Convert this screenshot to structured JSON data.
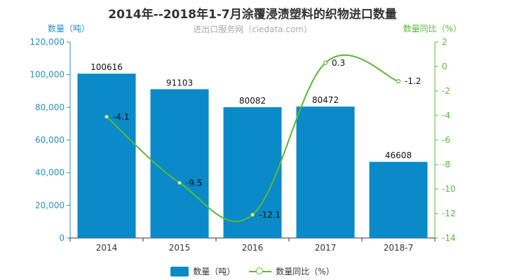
{
  "title": "2014年--2018年1-7月涂覆浸渍塑料的织物进口数量",
  "subtitle": "进出口服务网（ciedata.com）",
  "colors": {
    "bar": "#0a8ac8",
    "line": "#5cb83a",
    "left_axis": "#2a8fc0",
    "right_axis": "#5cb83a"
  },
  "chart_data": {
    "type": "bar",
    "categories": [
      "2014",
      "2015",
      "2016",
      "2017",
      "2018-7"
    ],
    "y_left": {
      "label": "数量（吨）",
      "ylim": [
        0,
        120000
      ],
      "ticks": [
        "0",
        "20,000",
        "40,000",
        "60,000",
        "80,000",
        "100,000",
        "120,000"
      ],
      "tick_values": [
        0,
        20000,
        40000,
        60000,
        80000,
        100000,
        120000
      ]
    },
    "y_right": {
      "label": "数量同比（%）",
      "ylim": [
        -14,
        2
      ],
      "ticks": [
        "-14",
        "-12",
        "-10",
        "-8",
        "-6",
        "-4",
        "-2",
        "0",
        "2"
      ],
      "tick_values": [
        -14,
        -12,
        -10,
        -8,
        -6,
        -4,
        -2,
        0,
        2
      ]
    },
    "series": [
      {
        "name": "数量（吨）",
        "type": "bar",
        "axis": "left",
        "values": [
          100616,
          91103,
          80082,
          80472,
          46608
        ],
        "labels": [
          "100616",
          "91103",
          "80082",
          "80472",
          "46608"
        ]
      },
      {
        "name": "数量同比（%）",
        "type": "line",
        "axis": "right",
        "values": [
          -4.1,
          -9.5,
          -12.1,
          0.3,
          -1.2
        ],
        "labels": [
          "-4.1",
          "-9.5",
          "-12.1",
          "0.3",
          "-1.2"
        ]
      }
    ],
    "grid": false,
    "legend": "bottom-center"
  },
  "legend": {
    "bar_label": "数量（吨）",
    "line_label": "数量同比（%）"
  }
}
